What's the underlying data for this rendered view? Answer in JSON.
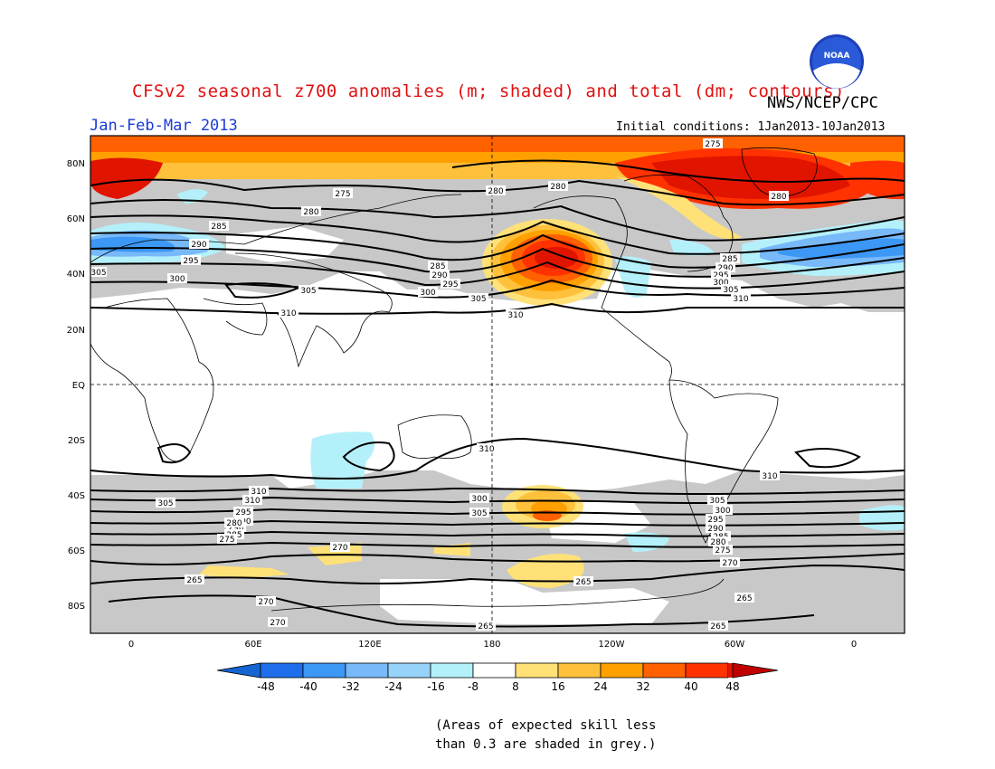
{
  "header": {
    "title": "CFSv2 seasonal z700 anomalies (m; shaded) and total (dm; contours)",
    "agency": "NWS/NCEP/CPC",
    "season": "Jan-Feb-Mar 2013",
    "initial_conditions": "Initial conditions: 1Jan2013-10Jan2013",
    "logo_text": "NOAA"
  },
  "map": {
    "lat_labels": [
      "80N",
      "60N",
      "40N",
      "20N",
      "EQ",
      "20S",
      "40S",
      "60S",
      "80S"
    ],
    "lon_labels": [
      "0",
      "60E",
      "120E",
      "180",
      "120W",
      "60W",
      "0"
    ],
    "contour_labels": {
      "north": [
        "275",
        "280",
        "285",
        "290",
        "295",
        "300",
        "305",
        "310"
      ],
      "south": [
        "310",
        "305",
        "300",
        "295",
        "290",
        "285",
        "280",
        "275",
        "270",
        "265"
      ]
    },
    "contour_label_texts": [
      "275",
      "275",
      "280",
      "280",
      "280",
      "280",
      "285",
      "290",
      "295",
      "300",
      "305",
      "305",
      "310",
      "310",
      "305",
      "285",
      "290",
      "295",
      "300",
      "305",
      "285",
      "290",
      "295",
      "300",
      "305",
      "310",
      "310",
      "310",
      "310",
      "310",
      "305",
      "300",
      "305",
      "300",
      "295",
      "290",
      "285",
      "280",
      "275",
      "270",
      "265",
      "270",
      "265",
      "305",
      "300",
      "295",
      "290",
      "285",
      "280",
      "275",
      "270",
      "265",
      "265",
      "265",
      "270"
    ]
  },
  "colorbar": {
    "labels": [
      "-48",
      "-40",
      "-32",
      "-24",
      "-16",
      "-8",
      "8",
      "16",
      "24",
      "32",
      "40",
      "48"
    ],
    "colors": [
      "#1464d2",
      "#1e6eeb",
      "#3c97f5",
      "#78b9fa",
      "#96d2fa",
      "#b4f0fa",
      "#ffffff",
      "#ffe178",
      "#ffc03c",
      "#ffa000",
      "#ff6000",
      "#ff3200",
      "#e11400",
      "#c00000"
    ]
  },
  "note": {
    "line1": "(Areas of expected skill less",
    "line2": "than 0.3 are shaded in grey.)"
  }
}
